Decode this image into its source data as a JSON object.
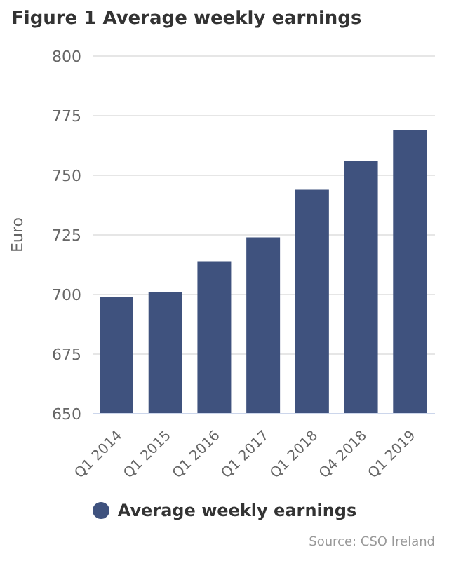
{
  "chart_data": {
    "type": "bar",
    "title": "Figure 1 Average weekly earnings",
    "ylabel": "Euro",
    "categories": [
      "Q1 2014",
      "Q1 2015",
      "Q1 2016",
      "Q1 2017",
      "Q1 2018",
      "Q4 2018",
      "Q1 2019"
    ],
    "series": [
      {
        "name": "Average weekly earnings",
        "color": "#3f527e",
        "values": [
          699,
          701,
          714,
          724,
          744,
          756,
          769
        ]
      }
    ],
    "ylim": [
      650,
      800
    ],
    "yticks": [
      650,
      675,
      700,
      725,
      750,
      775,
      800
    ],
    "grid": "y",
    "legend": "bottom",
    "annotations": [
      "Source: CSO Ireland"
    ]
  }
}
